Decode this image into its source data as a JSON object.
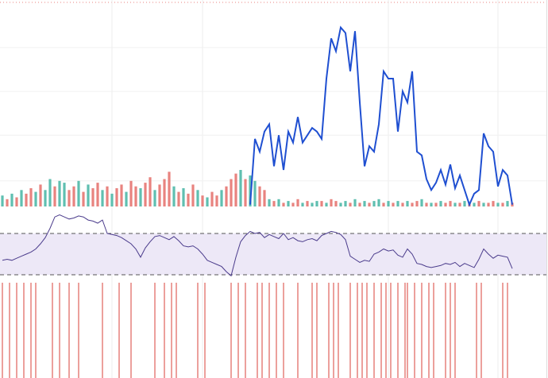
{
  "chart_data": {
    "type": "indicator-panes",
    "xlim": [
      0,
      107
    ],
    "xticks": [
      23,
      42,
      81,
      104
    ],
    "ylim": [
      0,
      100
    ],
    "yticks": [
      14,
      39,
      63,
      87
    ],
    "grid": true,
    "palette": [
      "#5fbfb0",
      "#e8837f"
    ],
    "bar_color_index": [
      0,
      1,
      0,
      1,
      0,
      1,
      1,
      0,
      1,
      0,
      0,
      1,
      0,
      0,
      1,
      1,
      0,
      1,
      0,
      1,
      1,
      0,
      1,
      0,
      1,
      1,
      0,
      1,
      1,
      0,
      1,
      1,
      0,
      1,
      1,
      1,
      0,
      1,
      0,
      1,
      1,
      0,
      1,
      0,
      1,
      1,
      0,
      1,
      1,
      1,
      0,
      1,
      0,
      0,
      1,
      1,
      0,
      1,
      0,
      1,
      0,
      1,
      1,
      0,
      1,
      0,
      0,
      1,
      0,
      1,
      1,
      0,
      0,
      1,
      0,
      1,
      0,
      1,
      0,
      0,
      1,
      0,
      1,
      0,
      1,
      0,
      1,
      1,
      0,
      1,
      0,
      1,
      0,
      1,
      1,
      0,
      1,
      0,
      1,
      0,
      1,
      0,
      1,
      1,
      0,
      1,
      0,
      1
    ],
    "volume": [
      6,
      4,
      7,
      5,
      9,
      7,
      10,
      8,
      12,
      9,
      15,
      11,
      14,
      13,
      9,
      11,
      14,
      8,
      12,
      10,
      13,
      9,
      11,
      7,
      10,
      12,
      8,
      14,
      11,
      10,
      13,
      16,
      9,
      12,
      15,
      19,
      11,
      8,
      10,
      7,
      12,
      9,
      6,
      5,
      8,
      6,
      9,
      11,
      15,
      18,
      20,
      15,
      17,
      14,
      11,
      9,
      4,
      3,
      4,
      2,
      3,
      2,
      4,
      2,
      3,
      2,
      3,
      3,
      2,
      4,
      3,
      2,
      3,
      2,
      4,
      2,
      3,
      2,
      3,
      4,
      2,
      3,
      2,
      3,
      2,
      3,
      2,
      3,
      4,
      2,
      2,
      2,
      3,
      2,
      3,
      2,
      2,
      3,
      2,
      2,
      3,
      2,
      2,
      3,
      2,
      2,
      3,
      2
    ],
    "line_color": "#1f4fd1",
    "line": [
      null,
      null,
      null,
      null,
      null,
      null,
      null,
      null,
      null,
      null,
      null,
      null,
      null,
      null,
      null,
      null,
      null,
      null,
      null,
      null,
      null,
      null,
      null,
      null,
      null,
      null,
      null,
      null,
      null,
      null,
      null,
      null,
      null,
      null,
      null,
      null,
      null,
      null,
      null,
      null,
      null,
      null,
      null,
      null,
      null,
      null,
      null,
      null,
      null,
      null,
      null,
      null,
      1,
      37,
      30,
      41,
      45,
      22,
      39,
      20,
      41,
      35,
      49,
      35,
      39,
      43,
      41,
      37,
      70,
      92,
      85,
      98,
      95,
      74,
      96,
      57,
      22,
      33,
      30,
      45,
      74,
      70,
      70,
      41,
      63,
      57,
      74,
      30,
      28,
      15,
      9,
      13,
      20,
      12,
      23,
      10,
      17,
      9,
      1,
      7,
      9,
      40,
      33,
      30,
      11,
      20,
      17,
      1
    ],
    "rsi_color": "#4b3c8c",
    "rsi_ylim": [
      0,
      100
    ],
    "rsi_bands": [
      30,
      70
    ],
    "rsi_band_color": "#ede8f7",
    "rsi": [
      44,
      45,
      44,
      46,
      48,
      50,
      52,
      55,
      60,
      66,
      75,
      86,
      88,
      86,
      84,
      85,
      87,
      86,
      83,
      82,
      80,
      83,
      70,
      69,
      68,
      66,
      63,
      60,
      55,
      47,
      56,
      62,
      67,
      68,
      66,
      64,
      67,
      63,
      58,
      57,
      58,
      55,
      50,
      44,
      42,
      40,
      38,
      33,
      29,
      47,
      62,
      68,
      72,
      70,
      71,
      66,
      69,
      67,
      65,
      70,
      64,
      66,
      63,
      62,
      64,
      65,
      63,
      68,
      70,
      72,
      71,
      69,
      64,
      48,
      45,
      42,
      44,
      43,
      50,
      52,
      55,
      53,
      54,
      49,
      47,
      55,
      50,
      41,
      40,
      38,
      37,
      38,
      39,
      41,
      40,
      42,
      38,
      41,
      39,
      37,
      45,
      55,
      50,
      46,
      49,
      48,
      47,
      36
    ],
    "signal_color": "#e0605a",
    "signals": [
      0,
      1.5,
      3,
      4.5,
      6,
      7,
      10.5,
      12,
      14,
      16,
      21,
      24.5,
      27,
      32,
      34,
      35.5,
      36.5,
      41,
      42.5,
      48,
      49.5,
      51,
      53.5,
      54.5,
      56,
      57.5,
      59,
      62,
      65,
      66,
      68.5,
      69.5,
      70.5,
      73,
      74.5,
      75.5,
      76.5,
      78,
      79.5,
      80.5,
      81.5,
      83,
      84.5,
      85,
      86.5,
      88,
      89.5,
      90.5,
      93,
      94,
      95,
      99.5,
      100.5,
      105,
      106
    ]
  }
}
